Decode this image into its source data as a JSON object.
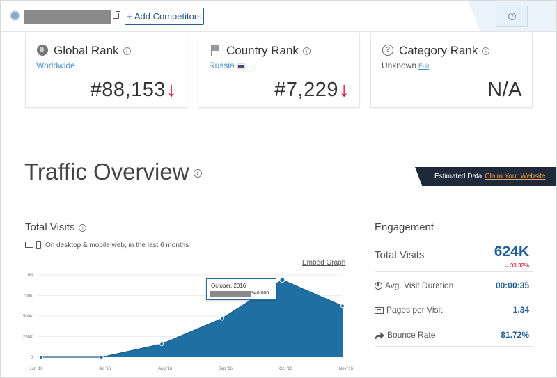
{
  "header": {
    "add_competitors_label": "+ Add Competitors",
    "help_label": "?"
  },
  "ranks": {
    "global": {
      "title": "Global Rank",
      "subtitle": "Worldwide",
      "value": "#88,153",
      "trend": "↓",
      "icon": "globe-icon"
    },
    "country": {
      "title": "Country Rank",
      "subtitle": "Russia",
      "value": "#7,229",
      "trend": "↓",
      "icon": "flag-icon"
    },
    "category": {
      "title": "Category Rank",
      "subtitle": "Unknown",
      "edit_label": "Edit",
      "value": "N/A",
      "icon": "question-icon"
    }
  },
  "traffic": {
    "title": "Traffic Overview",
    "estimated_label": "Estimated Data",
    "claim_label": "Claim Your Website"
  },
  "total_visits": {
    "title": "Total Visits",
    "device_note": "On desktop & mobile web, in the last 6 months",
    "embed_label": "Embed Graph",
    "tooltip": {
      "date": "October, 2016",
      "value": "940,000"
    }
  },
  "chart_data": {
    "type": "area",
    "categories": [
      "Jun '16",
      "Jul '16",
      "Aug '16",
      "Sep '16",
      "Oct '16",
      "Nov '16"
    ],
    "values": [
      0,
      0,
      160000,
      470000,
      940000,
      624000
    ],
    "y_ticks": [
      "0",
      "250K",
      "500K",
      "750K",
      "1M"
    ],
    "ylim": [
      0,
      1000000
    ],
    "color": "#1f6fa3"
  },
  "engagement": {
    "title": "Engagement",
    "total_visits": {
      "label": "Total Visits",
      "value": "624K",
      "change": "33.32%"
    },
    "rows": [
      {
        "label": "Avg. Visit Duration",
        "value": "00:00:35",
        "icon": "clock-icon"
      },
      {
        "label": "Pages per Visit",
        "value": "1.34",
        "icon": "pages-icon"
      },
      {
        "label": "Bounce Rate",
        "value": "81.72%",
        "icon": "bounce-icon"
      }
    ]
  }
}
